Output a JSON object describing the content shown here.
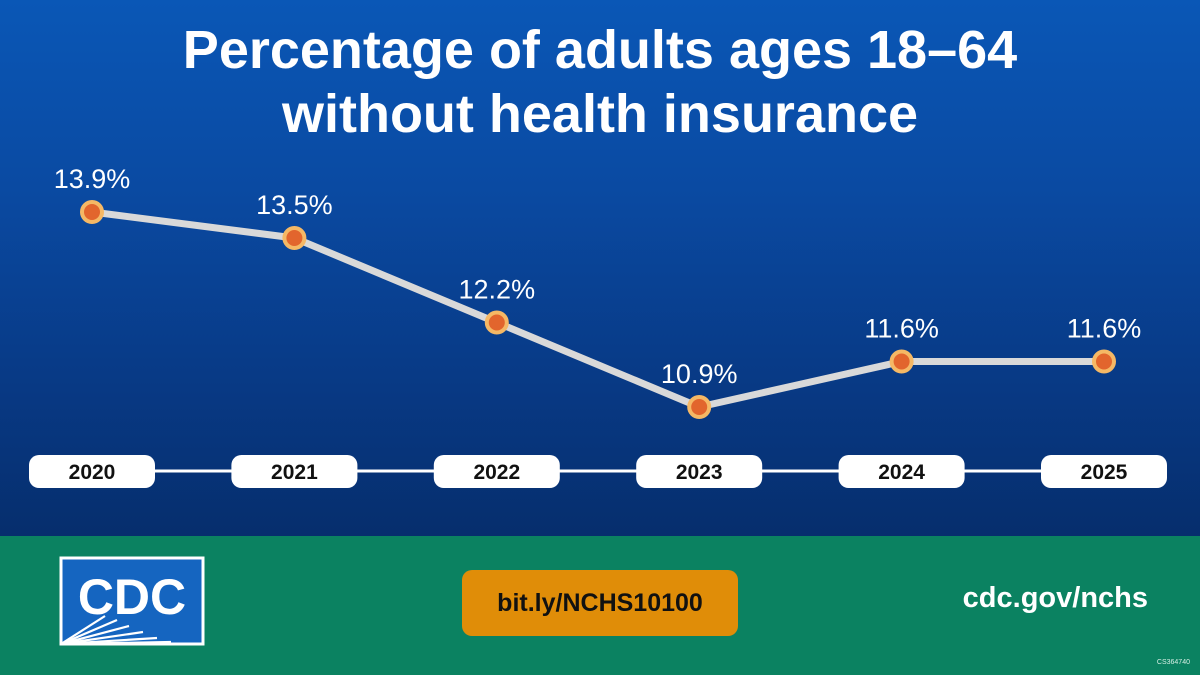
{
  "title_lines": [
    "Percentage of adults ages 18–64",
    "without health insurance"
  ],
  "chart_data": {
    "type": "line",
    "title": "Percentage of adults ages 18–64 without health insurance",
    "categories": [
      "2020",
      "2021",
      "2022",
      "2023",
      "2024",
      "2025"
    ],
    "values": [
      13.9,
      13.5,
      12.2,
      10.9,
      11.6,
      11.6
    ],
    "data_labels": [
      "13.9%",
      "13.5%",
      "12.2%",
      "10.9%",
      "11.6%",
      "11.6%"
    ],
    "grid": false,
    "legend": "none",
    "colors": {
      "line": "#d9d9d9",
      "marker_fill": "#e2652d",
      "marker_ring": "#f5b865",
      "label": "#ffffff",
      "year_pill": "#ffffff"
    }
  },
  "footer": {
    "logo_text": "CDC",
    "url": "bit.ly/NCHS10100",
    "site": "cdc.gov/nchs",
    "code": "CS364740",
    "colors": {
      "band": "#0b8261",
      "url_pill": "#e08d08",
      "logo_blue": "#1565c0"
    }
  }
}
